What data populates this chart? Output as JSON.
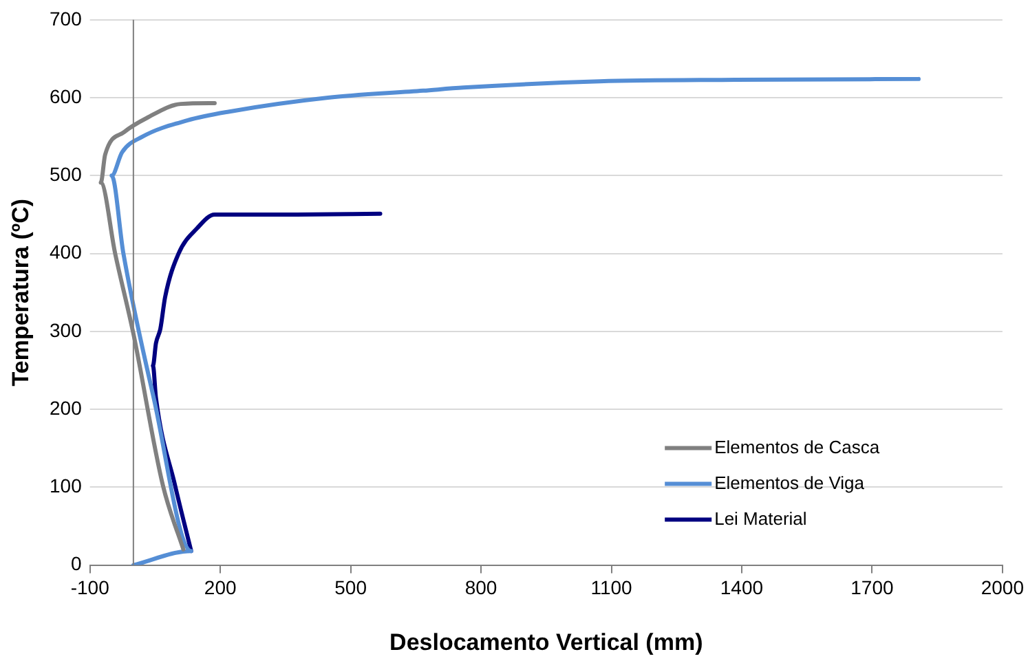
{
  "chart_data": {
    "type": "line",
    "xlabel": "Deslocamento Vertical (mm)",
    "ylabel": "Temperatura (ºC)",
    "xlim": [
      -100,
      2000
    ],
    "xticks": [
      -100,
      200,
      500,
      800,
      1100,
      1400,
      1700,
      2000
    ],
    "ylim": [
      0,
      700
    ],
    "yticks": [
      0,
      100,
      200,
      300,
      400,
      500,
      600,
      700
    ],
    "grid": "y",
    "legend": "bottom right",
    "marker": "none",
    "line_style": "solid",
    "series": [
      {
        "name": "Elementos de Casca",
        "color": "#808080",
        "x": [
          115,
          68,
          0,
          -42,
          -75,
          -65,
          -21,
          31,
          109,
          187
        ],
        "values": [
          20,
          102,
          297,
          400,
          491,
          527,
          556,
          574,
          592,
          593
        ]
      },
      {
        "name": "Elementos de Viga",
        "color": "#558ed5",
        "x": [
          0,
          133,
          47,
          -23,
          -50,
          -26,
          21,
          125,
          219,
          448,
          667,
          760,
          1073,
          1385,
          1807
        ],
        "values": [
          0,
          18,
          214,
          400,
          500,
          530,
          550,
          571,
          582,
          600,
          609,
          613,
          621,
          623,
          624
        ]
      },
      {
        "name": "Lei Material",
        "color": "#000080",
        "x": [
          133,
          96,
          52,
          45,
          52,
          62,
          73,
          104,
          146,
          187,
          375,
          568
        ],
        "values": [
          18,
          102,
          214,
          256,
          285,
          303,
          344,
          400,
          432,
          450,
          450,
          451
        ]
      }
    ]
  }
}
